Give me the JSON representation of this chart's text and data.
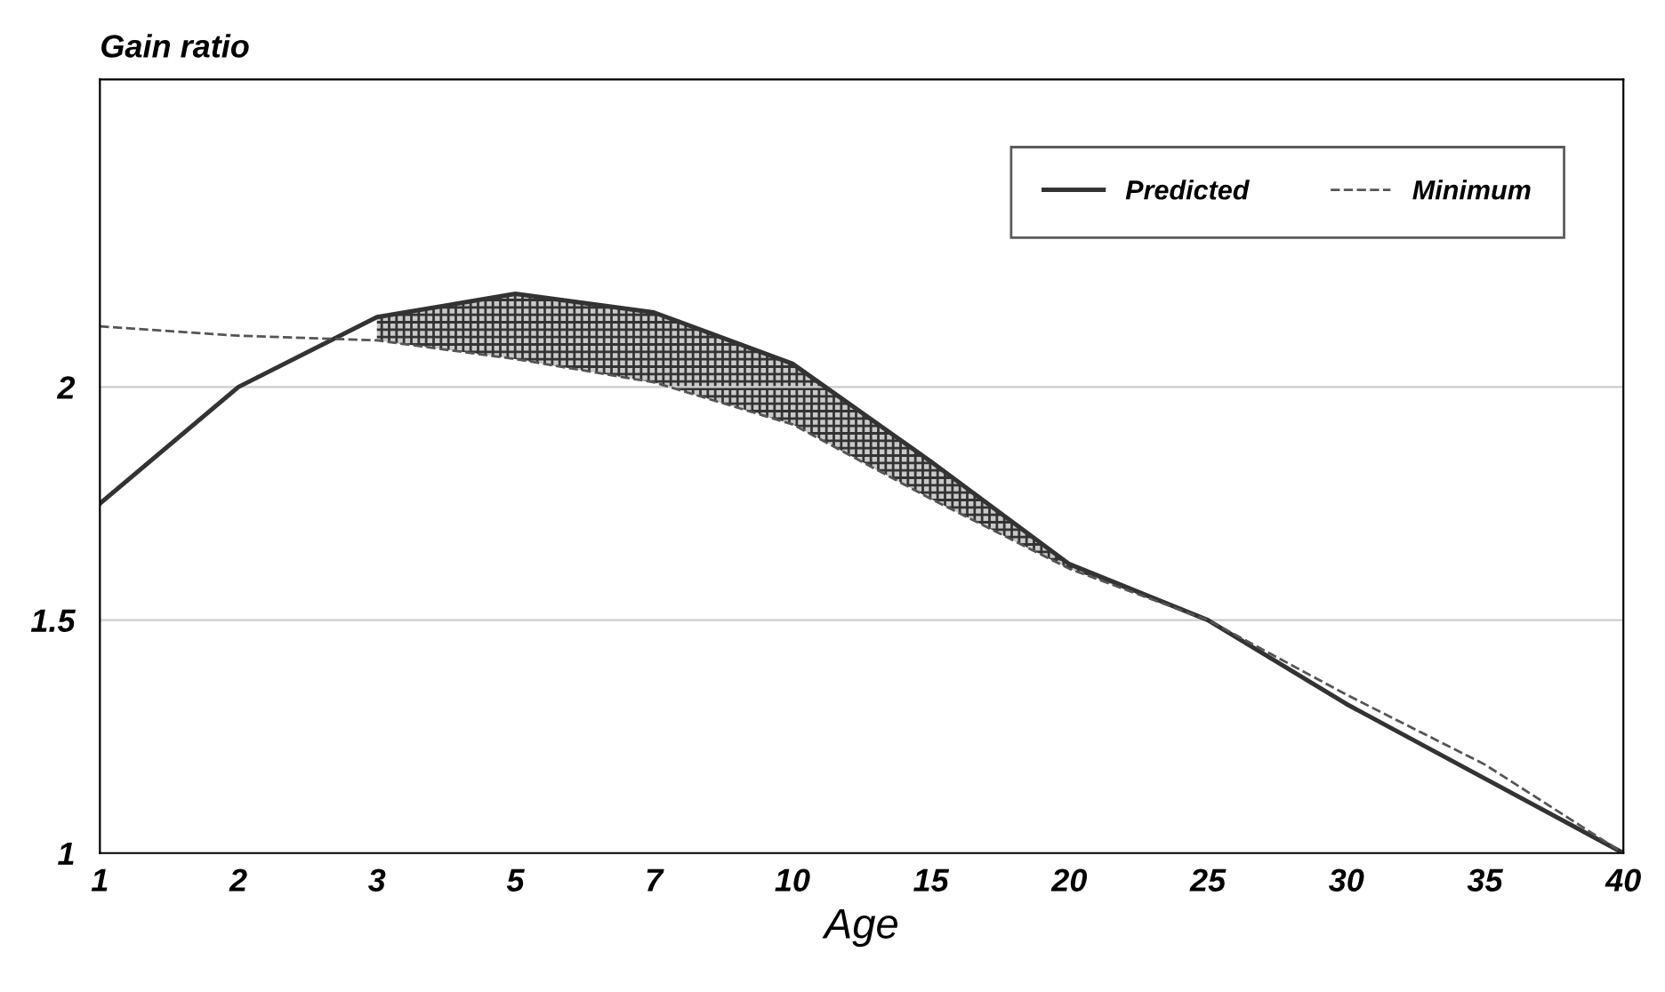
{
  "chart_data": {
    "type": "line",
    "ylabel": "Gain ratio",
    "xlabel": "Age",
    "categories": [
      "1",
      "2",
      "3",
      "5",
      "7",
      "10",
      "15",
      "20",
      "25",
      "30",
      "35",
      "40"
    ],
    "series": [
      {
        "name": "Predicted",
        "color": "#333333",
        "line_style": "solid",
        "values": [
          1.75,
          2.0,
          2.15,
          2.2,
          2.16,
          2.05,
          1.84,
          1.62,
          1.5,
          1.32,
          1.16,
          1.0
        ],
        "lower": [
          null,
          null,
          2.1,
          2.06,
          2.01,
          1.92,
          1.76,
          1.61,
          1.5,
          null,
          null,
          null
        ],
        "upper": [
          null,
          null,
          2.15,
          2.2,
          2.16,
          2.05,
          1.84,
          1.62,
          1.5,
          null,
          null,
          null
        ]
      },
      {
        "name": "Minimum",
        "color": "#555555",
        "line_style": "dashed",
        "values": [
          2.13,
          2.11,
          2.1,
          2.06,
          2.01,
          1.92,
          1.76,
          1.61,
          1.5,
          1.34,
          1.19,
          1.0
        ]
      }
    ],
    "ylim": [
      1,
      2.66
    ],
    "yticks": [
      1,
      1.5,
      2
    ],
    "grid": "y",
    "legend": "top right",
    "marker": "none"
  }
}
